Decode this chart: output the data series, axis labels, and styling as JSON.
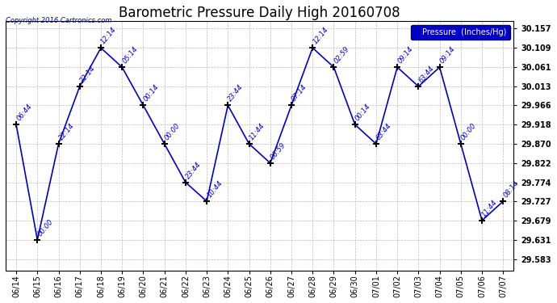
{
  "title": "Barometric Pressure Daily High 20160708",
  "copyright": "Copyright 2016 Cartronics.com",
  "legend_label": "Pressure  (Inches/Hg)",
  "line_color": "#0000cc",
  "bg_color": "#ffffff",
  "grid_color": "#bbbbbb",
  "x_labels": [
    "06/14",
    "06/15",
    "06/16",
    "06/17",
    "06/18",
    "06/19",
    "06/20",
    "06/21",
    "06/22",
    "06/23",
    "06/24",
    "06/25",
    "06/26",
    "06/27",
    "06/28",
    "06/29",
    "06/30",
    "07/01",
    "07/02",
    "07/03",
    "07/04",
    "07/05",
    "07/06",
    "07/07"
  ],
  "y_values": [
    29.918,
    29.631,
    29.87,
    30.013,
    30.109,
    30.061,
    29.966,
    29.87,
    29.774,
    29.727,
    29.966,
    29.87,
    29.822,
    29.966,
    30.109,
    30.061,
    29.918,
    29.87,
    30.061,
    30.013,
    30.061,
    29.87,
    29.679,
    29.727
  ],
  "point_labels": [
    "06:44",
    "00:00",
    "22:14",
    "22:14",
    "12:14",
    "05:14",
    "00:14",
    "00:00",
    "23:44",
    "10:44",
    "23:44",
    "11:44",
    "06:59",
    "07:14",
    "12:14",
    "02:59",
    "00:14",
    "63:44",
    "09:14",
    "63:44",
    "09:14",
    "00:00",
    "11:44",
    "08:14"
  ],
  "ytick_values": [
    29.583,
    29.631,
    29.679,
    29.727,
    29.774,
    29.822,
    29.87,
    29.918,
    29.966,
    30.013,
    30.061,
    30.109,
    30.157
  ],
  "ylim": [
    29.555,
    30.175
  ],
  "fig_width": 6.9,
  "fig_height": 3.75,
  "dpi": 100
}
